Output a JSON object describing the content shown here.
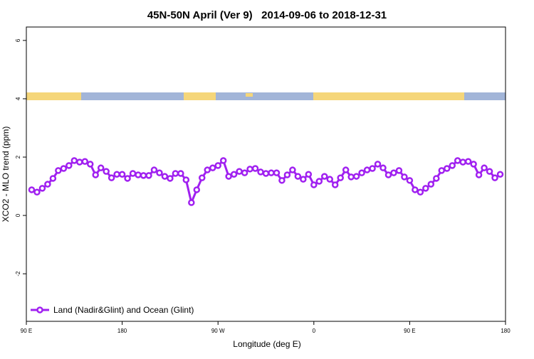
{
  "chart_data": {
    "type": "line",
    "title": "45N-50N April (Ver 9)   2014-09-06 to 2018-12-31",
    "xlabel": "Longitude (deg E)",
    "ylabel": "XCO2 - MLO trend (ppm)",
    "xlim": [
      90,
      540
    ],
    "ylim": [
      -3.63,
      6.46
    ],
    "xticks": [
      {
        "value": 90,
        "label": "90 E"
      },
      180,
      {
        "value": 270,
        "label": "90 W"
      },
      {
        "value": 360,
        "label": "0"
      },
      {
        "value": 450,
        "label": "90 E"
      },
      {
        "value": 540,
        "label": "180"
      }
    ],
    "yticks": [
      -2,
      0,
      2,
      4,
      6
    ],
    "legend": "bottom-left",
    "x": [
      95,
      100,
      105,
      110,
      115,
      120,
      125,
      130,
      135,
      140,
      145,
      150,
      155,
      160,
      165,
      170,
      175,
      180,
      185,
      190,
      195,
      200,
      205,
      210,
      215,
      220,
      225,
      230,
      235,
      240,
      245,
      250,
      255,
      260,
      265,
      270,
      275,
      280,
      285,
      290,
      295,
      300,
      305,
      310,
      315,
      320,
      325,
      330,
      335,
      340,
      345,
      350,
      355,
      360,
      365,
      370,
      375,
      380,
      385,
      390,
      395,
      400,
      405,
      410,
      415,
      420,
      425,
      430,
      435,
      440,
      445,
      450,
      455,
      460,
      465,
      470,
      475,
      480,
      485,
      490,
      495,
      500,
      505,
      510,
      515,
      520,
      525,
      530,
      535
    ],
    "series": [
      {
        "name": "Land (Nadir&Glint) and Ocean (Glint)",
        "color": "#a020f0",
        "values": [
          0.88,
          0.8,
          0.93,
          1.07,
          1.27,
          1.54,
          1.61,
          1.71,
          1.88,
          1.83,
          1.85,
          1.76,
          1.39,
          1.63,
          1.51,
          1.29,
          1.41,
          1.41,
          1.27,
          1.44,
          1.39,
          1.37,
          1.37,
          1.56,
          1.46,
          1.34,
          1.27,
          1.44,
          1.44,
          1.22,
          0.44,
          0.88,
          1.29,
          1.56,
          1.63,
          1.71,
          1.88,
          1.34,
          1.41,
          1.51,
          1.46,
          1.59,
          1.61,
          1.49,
          1.44,
          1.46,
          1.46,
          1.2,
          1.39,
          1.56,
          1.34,
          1.24,
          1.41,
          1.05,
          1.17,
          1.34,
          1.24,
          1.05,
          1.29,
          1.56,
          1.32,
          1.34,
          1.46,
          1.56,
          1.61,
          1.76,
          1.63,
          1.39,
          1.46,
          1.54,
          1.32,
          1.2,
          0.88,
          0.8,
          0.93,
          1.07,
          1.27,
          1.54,
          1.61,
          1.71,
          1.88,
          1.83,
          1.85,
          1.76,
          1.39,
          1.63,
          1.51,
          1.29,
          1.41
        ]
      }
    ]
  }
}
